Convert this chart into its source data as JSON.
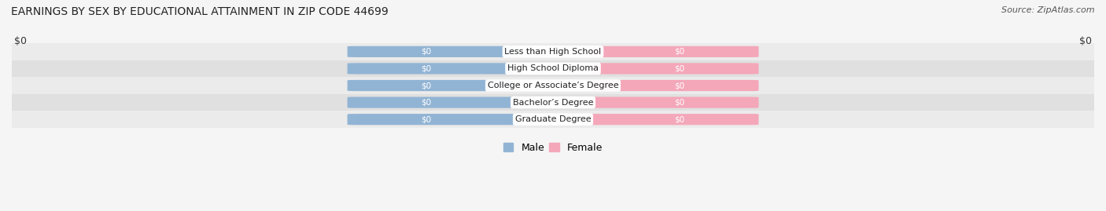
{
  "title": "EARNINGS BY SEX BY EDUCATIONAL ATTAINMENT IN ZIP CODE 44699",
  "source": "Source: ZipAtlas.com",
  "categories": [
    "Less than High School",
    "High School Diploma",
    "College or Associate’s Degree",
    "Bachelor’s Degree",
    "Graduate Degree"
  ],
  "male_values": [
    0,
    0,
    0,
    0,
    0
  ],
  "female_values": [
    0,
    0,
    0,
    0,
    0
  ],
  "male_color": "#92b4d4",
  "female_color": "#f4a7b9",
  "background_color": "#f5f5f5",
  "row_bg_light": "#ebebeb",
  "row_bg_dark": "#e0e0e0",
  "xlabel_left": "$0",
  "xlabel_right": "$0",
  "bar_height": 0.62,
  "title_fontsize": 10,
  "source_fontsize": 8,
  "legend_male": "Male",
  "legend_female": "Female"
}
